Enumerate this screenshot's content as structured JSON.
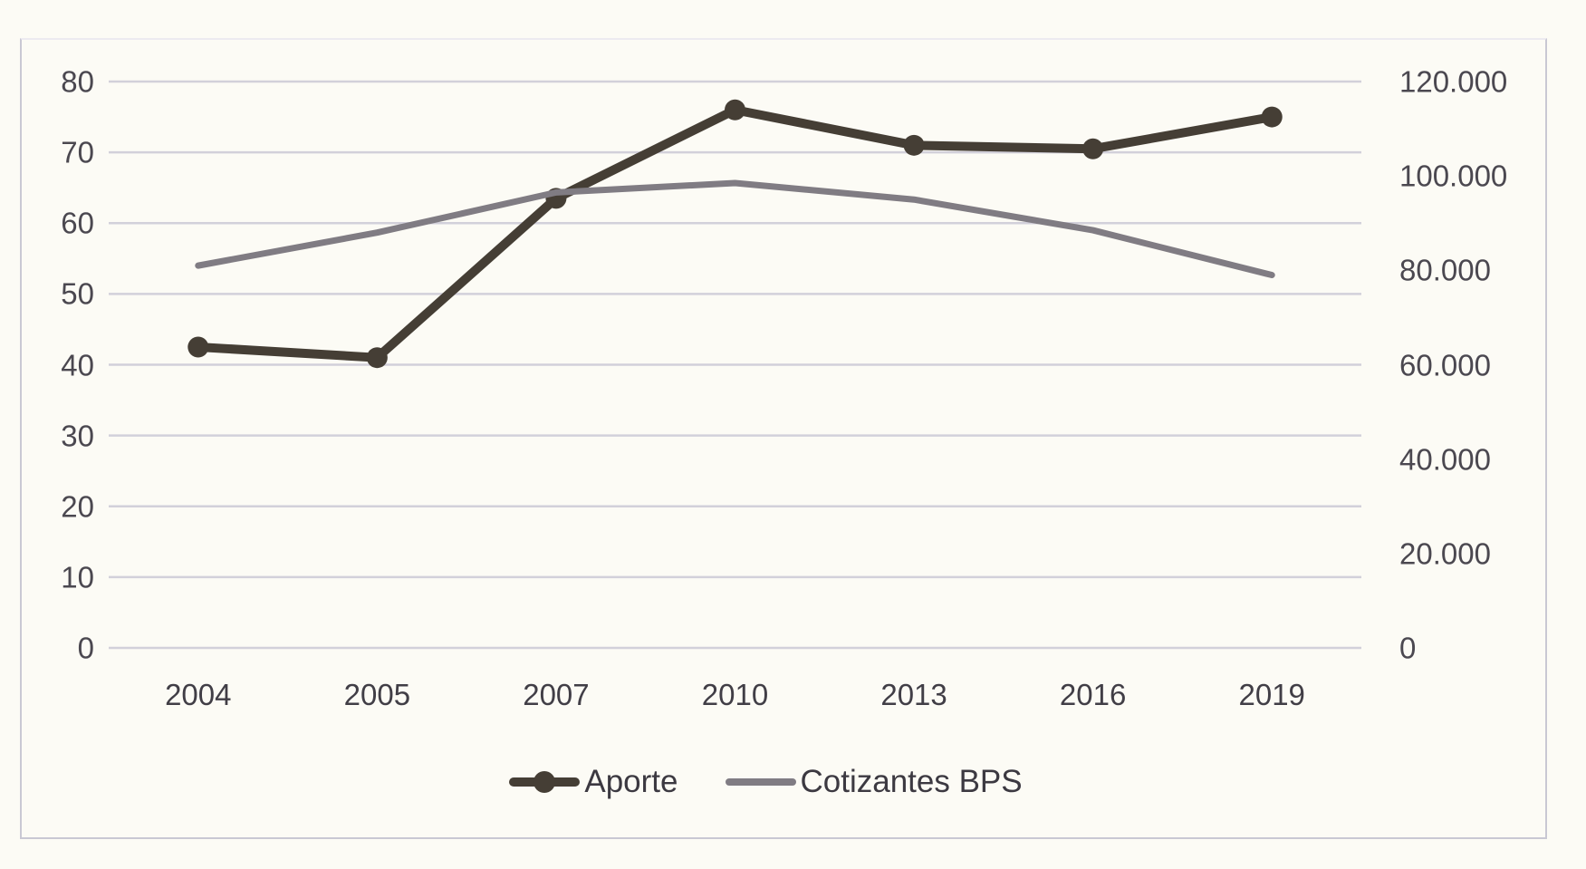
{
  "chart_data": {
    "type": "line",
    "categories": [
      "2004",
      "2005",
      "2007",
      "2010",
      "2013",
      "2016",
      "2019"
    ],
    "series": [
      {
        "name": "Aporte",
        "axis": "left",
        "marker": "circle",
        "color": "#453e35",
        "values": [
          42.5,
          41,
          63.5,
          76,
          71,
          70.5,
          75
        ]
      },
      {
        "name": "Cotizantes BPS",
        "axis": "right",
        "marker": "none",
        "color": "#807c83",
        "values": [
          81000,
          88000,
          96500,
          98500,
          95000,
          88500,
          79000
        ]
      }
    ],
    "left_axis": {
      "min": 0,
      "max": 80,
      "step": 10,
      "tick_labels": [
        "0",
        "10",
        "20",
        "30",
        "40",
        "50",
        "60",
        "70",
        "80"
      ]
    },
    "right_axis": {
      "min": 0,
      "max": 120000,
      "step": 20000,
      "tick_labels": [
        "0",
        "20.000",
        "40.000",
        "60.000",
        "80.000",
        "100.000",
        "120.000"
      ]
    },
    "title": "",
    "xlabel": "",
    "ylabel": "",
    "grid": true,
    "legend_position": "bottom",
    "legend": [
      "Aporte",
      "Cotizantes BPS"
    ]
  },
  "colors": {
    "background": "#fcfbf5",
    "gridline": "#d2d0da",
    "chart_border": "#c9c8d3",
    "aporte_line": "#453e35",
    "cotizantes_line": "#807c83",
    "tick_text": "#4b4850",
    "label_text": "#3c3941"
  }
}
